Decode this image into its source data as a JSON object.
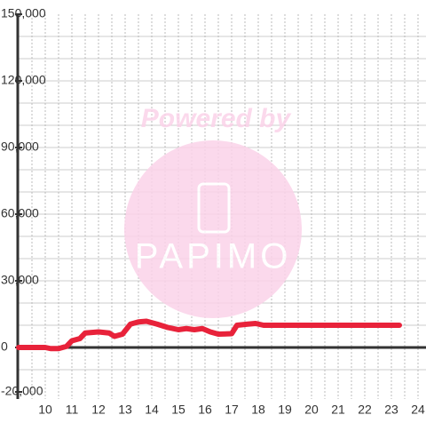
{
  "chart_data": {
    "type": "line",
    "x": [
      9,
      10,
      10.2,
      10.5,
      10.8,
      11,
      11.3,
      11.5,
      12,
      12.4,
      12.6,
      12.9,
      13.2,
      13.5,
      13.8,
      14.2,
      14.6,
      15,
      15.3,
      15.6,
      15.9,
      16.2,
      16.5,
      17,
      17.2,
      17.6,
      17.9,
      18.2,
      19,
      23.3
    ],
    "series": [
      {
        "color": "#e8223a",
        "values": [
          0,
          0,
          -500,
          -500,
          500,
          3000,
          4000,
          6500,
          7000,
          6500,
          5000,
          6000,
          10500,
          11500,
          11800,
          10500,
          9000,
          8000,
          8500,
          8000,
          8500,
          7000,
          6000,
          6200,
          10000,
          10500,
          10800,
          10000,
          10000,
          10000
        ]
      }
    ],
    "xlim": [
      9,
      24.3
    ],
    "xticks": [
      10,
      11,
      12,
      13,
      14,
      15,
      16,
      17,
      18,
      19,
      20,
      21,
      22,
      23,
      24
    ],
    "xgrid": [
      9.5,
      10,
      10.5,
      11,
      11.5,
      12,
      12.5,
      13,
      13.5,
      14,
      14.5,
      15,
      15.5,
      16,
      16.5,
      17,
      17.5,
      18,
      18.5,
      19,
      19.5,
      20,
      20.5,
      21,
      21.5,
      22,
      22.5,
      23,
      23.5,
      24
    ],
    "ylim": [
      -20000,
      150000
    ],
    "yticks": [
      {
        "value": -20000,
        "label": "-20,000"
      },
      0,
      {
        "value": 30000,
        "label": "30,000"
      },
      {
        "value": 60000,
        "label": "60,000"
      },
      {
        "value": 90000,
        "label": "90,000"
      },
      {
        "value": 120000,
        "label": "120,000"
      },
      {
        "value": 150000,
        "label": "150,000"
      }
    ],
    "ygrid": [
      -10000,
      10000,
      20000,
      30000,
      40000,
      50000,
      60000,
      70000,
      80000,
      90000,
      100000,
      110000,
      120000,
      130000,
      140000
    ],
    "watermark": {
      "top": "Powered by",
      "bottom": "PAPIMO"
    }
  }
}
